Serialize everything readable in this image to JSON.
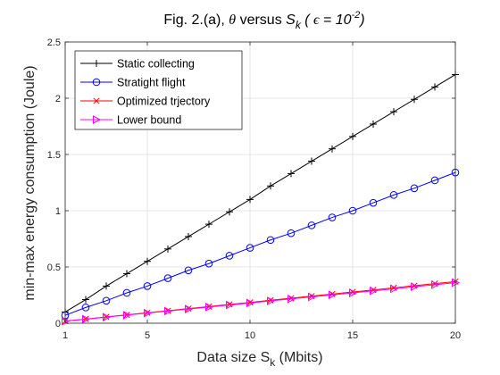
{
  "chart_data": {
    "type": "line",
    "title": {
      "prefix": "Fig. 2.(a), ",
      "theta": "θ",
      "versus": " versus  ",
      "S": "S",
      "k": "k",
      "open": " ( ",
      "epsilon": "ϵ",
      "equals": " = 10",
      "exponent": "-2",
      "close": ")"
    },
    "xlabel": {
      "main": "Data size S",
      "sub": "k",
      "tail": " (Mbits)"
    },
    "ylabel": "min-max energy consumption (Joule)",
    "xlim": [
      1,
      20
    ],
    "ylim": [
      0,
      2.5
    ],
    "x_ticks": [
      1,
      5,
      10,
      15,
      20
    ],
    "x_tick_labels": [
      "1",
      "5",
      "10",
      "15",
      "20"
    ],
    "y_ticks": [
      0,
      0.5,
      1,
      1.5,
      2,
      2.5
    ],
    "y_tick_labels": [
      "0",
      "0.5",
      "1",
      "1.5",
      "2",
      "2.5"
    ],
    "grid": true,
    "legend_position": "top-left",
    "x": [
      1,
      2,
      3,
      4,
      5,
      6,
      7,
      8,
      9,
      10,
      11,
      12,
      13,
      14,
      15,
      16,
      17,
      18,
      19,
      20
    ],
    "series": [
      {
        "name": "Static collecting",
        "color": "#000000",
        "marker": "plus",
        "values": [
          0.1,
          0.21,
          0.33,
          0.44,
          0.55,
          0.66,
          0.77,
          0.88,
          0.99,
          1.1,
          1.22,
          1.33,
          1.44,
          1.55,
          1.66,
          1.77,
          1.88,
          1.99,
          2.1,
          2.21
        ]
      },
      {
        "name": "Stratight flight",
        "color": "#0000ff",
        "marker": "circle",
        "values": [
          0.07,
          0.14,
          0.2,
          0.27,
          0.33,
          0.4,
          0.47,
          0.53,
          0.6,
          0.67,
          0.74,
          0.8,
          0.87,
          0.94,
          1.0,
          1.07,
          1.14,
          1.2,
          1.27,
          1.34
        ]
      },
      {
        "name": "Optimized trjectory",
        "color": "#ff0000",
        "marker": "x",
        "values": [
          0.019,
          0.037,
          0.056,
          0.074,
          0.093,
          0.111,
          0.13,
          0.148,
          0.167,
          0.185,
          0.204,
          0.222,
          0.241,
          0.259,
          0.278,
          0.296,
          0.315,
          0.333,
          0.352,
          0.37
        ]
      },
      {
        "name": "Lower bound",
        "color": "#ff00ff",
        "marker": "triangle-right",
        "values": [
          0.018,
          0.036,
          0.054,
          0.072,
          0.09,
          0.108,
          0.126,
          0.144,
          0.162,
          0.18,
          0.198,
          0.216,
          0.234,
          0.252,
          0.27,
          0.288,
          0.306,
          0.324,
          0.342,
          0.36
        ]
      }
    ]
  }
}
